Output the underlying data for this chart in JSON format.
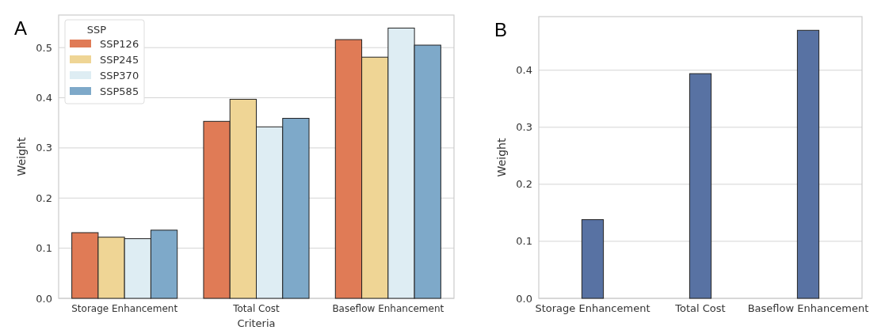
{
  "chart_data": [
    {
      "type": "bar",
      "title": "A",
      "xlabel": "Criteria",
      "ylabel": "Weight",
      "legend_title": "SSP",
      "legend": "top left",
      "grid": "y",
      "categories": [
        "Storage Enhancement",
        "Total Cost",
        "Baseflow Enhancement"
      ],
      "series": [
        {
          "name": "SSP126",
          "color": "#e07b56",
          "values": [
            0.131,
            0.353,
            0.516
          ]
        },
        {
          "name": "SSP245",
          "color": "#efd595",
          "values": [
            0.122,
            0.397,
            0.481
          ]
        },
        {
          "name": "SSP370",
          "color": "#deedf3",
          "values": [
            0.119,
            0.342,
            0.539
          ]
        },
        {
          "name": "SSP585",
          "color": "#7ea9c9",
          "values": [
            0.136,
            0.359,
            0.505
          ]
        }
      ],
      "ylim": [
        0,
        0.565
      ],
      "yticks": [
        {
          "value": 0,
          "label": "0.0"
        },
        0.1,
        0.2,
        0.3,
        0.4,
        0.5
      ]
    },
    {
      "type": "bar",
      "title": "B",
      "ylabel": "Weight",
      "grid": "y",
      "categories": [
        "Storage Enhancement",
        "Total Cost",
        "Baseflow Enhancement"
      ],
      "series": [
        {
          "color": "#5872a3",
          "values": [
            0.138,
            0.394,
            0.47
          ]
        }
      ],
      "ylim": [
        0,
        0.494
      ],
      "yticks": [
        {
          "value": 0,
          "label": "0.0"
        },
        0.1,
        0.2,
        0.3,
        0.4
      ]
    }
  ]
}
